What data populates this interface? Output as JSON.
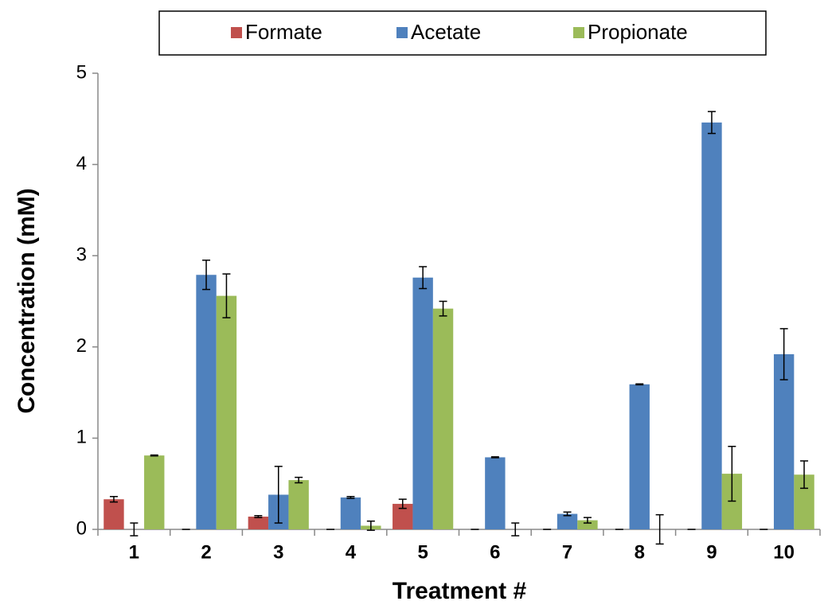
{
  "chart_data": {
    "type": "bar",
    "x_label": "Treatment #",
    "y_label": "Concentration (mM)",
    "categories": [
      "1",
      "2",
      "3",
      "4",
      "5",
      "6",
      "7",
      "8",
      "9",
      "10"
    ],
    "series": [
      {
        "name": "Formate",
        "color": "#c0504d",
        "values": [
          0.33,
          0,
          0.14,
          0,
          0.28,
          0,
          0,
          0,
          0,
          0
        ],
        "errors": [
          0.03,
          0,
          0.01,
          0,
          0.05,
          0,
          0,
          0,
          0,
          0
        ]
      },
      {
        "name": "Acetate",
        "color": "#4f81bd",
        "values": [
          0,
          2.79,
          0.38,
          0.35,
          2.76,
          0.79,
          0.17,
          1.59,
          4.46,
          1.92
        ],
        "errors": [
          0.07,
          0.16,
          0.31,
          0.01,
          0.12,
          0.005,
          0.02,
          0.005,
          0.12,
          0.28
        ]
      },
      {
        "name": "Propionate",
        "color": "#9bbb59",
        "values": [
          0.81,
          2.56,
          0.54,
          0.04,
          2.42,
          0,
          0.1,
          0,
          0.61,
          0.6
        ],
        "errors": [
          0.005,
          0.24,
          0.03,
          0.05,
          0.08,
          0.07,
          0.03,
          0.16,
          0.3,
          0.15
        ]
      }
    ],
    "ylim": [
      0,
      5
    ],
    "yticks": [
      0,
      1,
      2,
      3,
      4,
      5
    ],
    "legend": "top"
  }
}
